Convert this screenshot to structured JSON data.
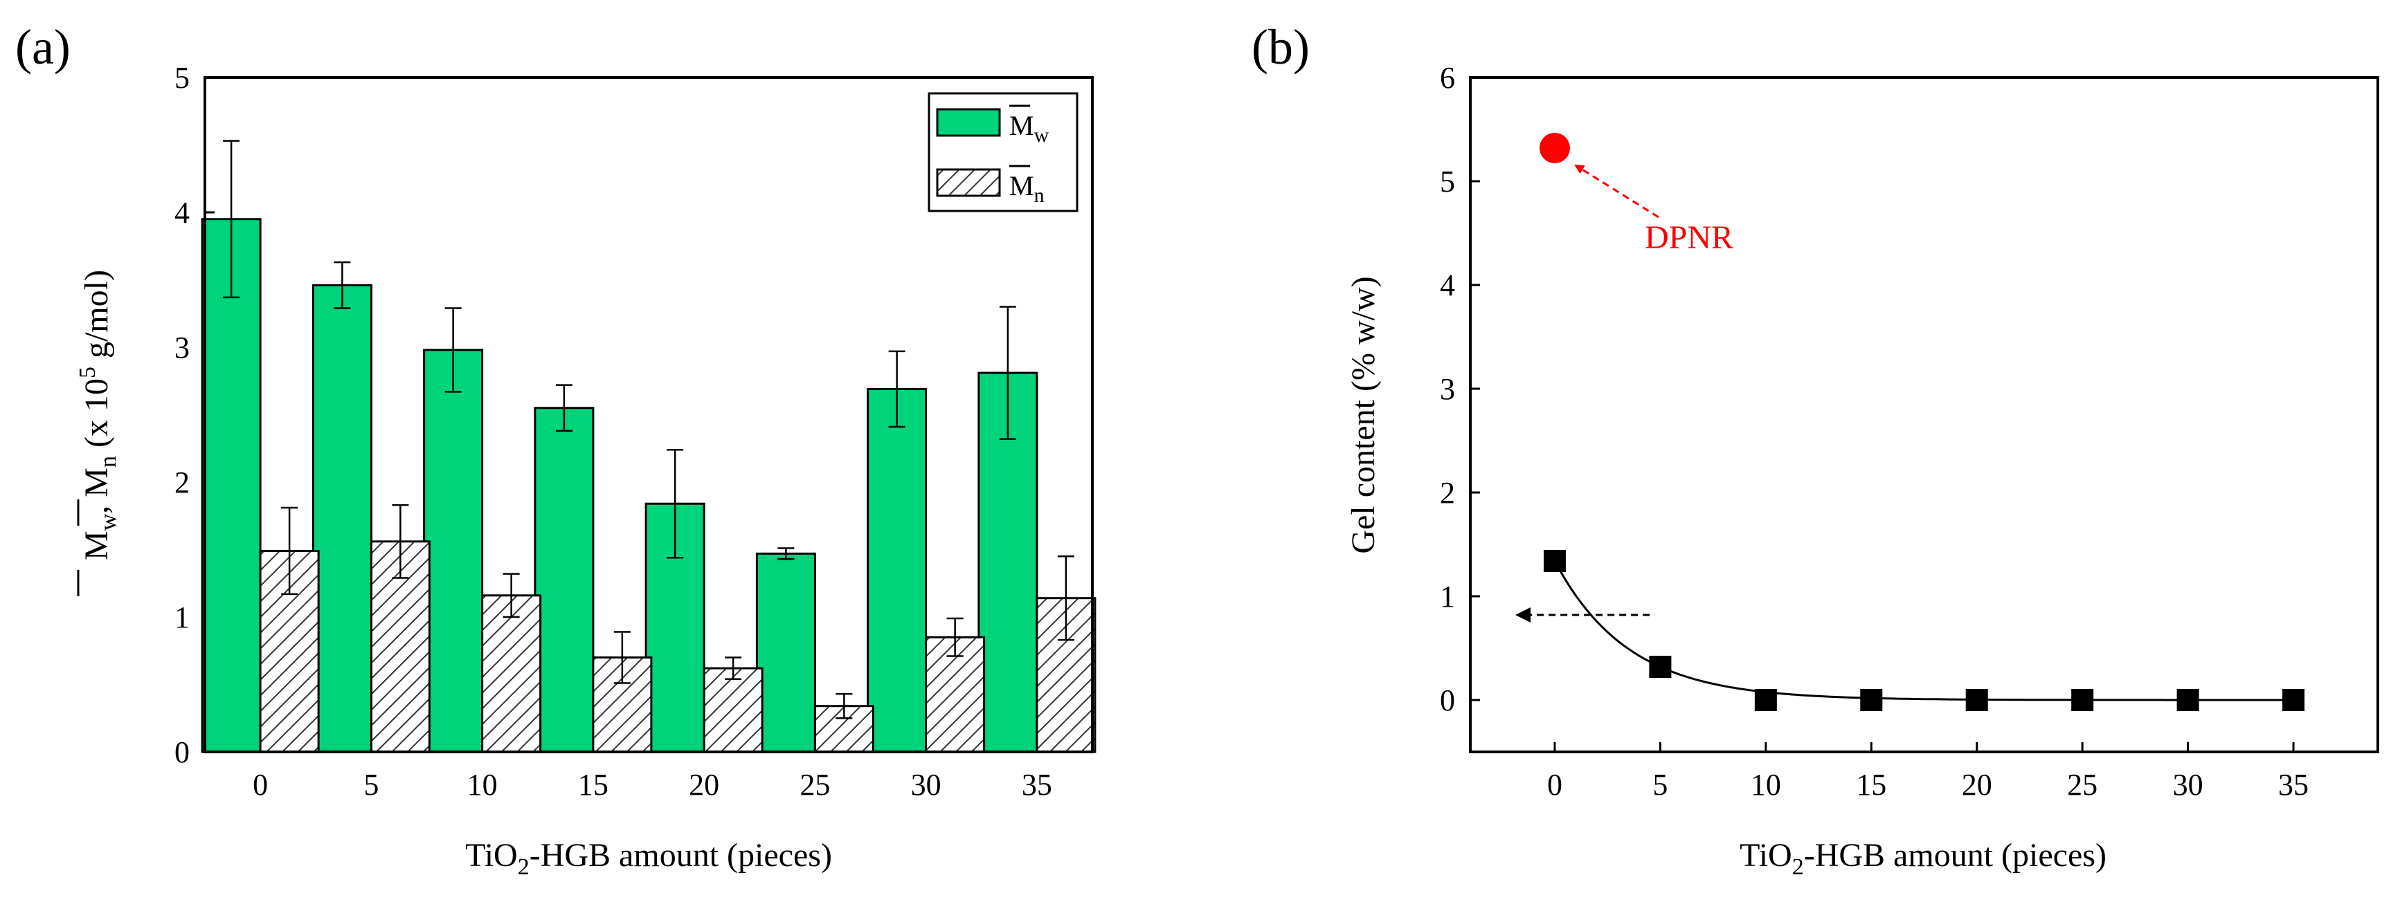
{
  "chart_data": [
    {
      "panel": "(a)",
      "type": "bar",
      "categories": [
        "0",
        "5",
        "10",
        "15",
        "20",
        "25",
        "30",
        "35"
      ],
      "xlabel": {
        "pre": "TiO",
        "sub": "2",
        "post": "-HGB amount (pieces)"
      },
      "ylabel": {
        "mw": "M",
        "mw_sub": "w",
        "sep": ", ",
        "mn": "M",
        "mn_sub": "n",
        "pre": " (x 10",
        "sup": "5",
        "post": " g/mol)"
      },
      "ylim": [
        0,
        5
      ],
      "yticks": [
        "0",
        "1",
        "2",
        "3",
        "4",
        "5"
      ],
      "legend_position": "top-right",
      "series": [
        {
          "name": "M",
          "sub": "w",
          "color": "#00d47a",
          "pattern": "solid",
          "values": [
            3.95,
            3.46,
            2.98,
            2.55,
            1.84,
            1.47,
            2.69,
            2.81
          ],
          "errors": [
            0.58,
            0.17,
            0.31,
            0.17,
            0.4,
            0.04,
            0.28,
            0.49
          ]
        },
        {
          "name": "M",
          "sub": "n",
          "color": "#ffffff",
          "pattern": "hatched",
          "values": [
            1.49,
            1.56,
            1.16,
            0.7,
            0.62,
            0.34,
            0.85,
            1.14
          ],
          "errors": [
            0.32,
            0.27,
            0.16,
            0.19,
            0.08,
            0.09,
            0.14,
            0.31
          ]
        }
      ]
    },
    {
      "panel": "(b)",
      "type": "scatter",
      "xlabel": {
        "pre": "TiO",
        "sub": "2",
        "post": "-HGB amount (pieces)"
      },
      "ylabel": "Gel content (% w/w)",
      "xticks": [
        "0",
        "5",
        "10",
        "15",
        "20",
        "25",
        "30",
        "35"
      ],
      "yticks": [
        "0",
        "1",
        "2",
        "3",
        "4",
        "5",
        "6"
      ],
      "xlim": [
        -4,
        39
      ],
      "ylim": [
        -0.5,
        6
      ],
      "series": [
        {
          "marker": "square",
          "color": "#000000",
          "x": [
            0,
            5,
            10,
            15,
            20,
            25,
            30,
            35
          ],
          "y": [
            1.34,
            0.32,
            0.0,
            0.0,
            0.0,
            0.0,
            0.0,
            0.0
          ],
          "fit_line": true
        },
        {
          "marker": "circle",
          "color": "#ff0000",
          "x": [
            0
          ],
          "y": [
            5.32
          ]
        }
      ],
      "annotations": [
        {
          "text": "DPNR",
          "color": "#ff0000"
        }
      ]
    }
  ]
}
